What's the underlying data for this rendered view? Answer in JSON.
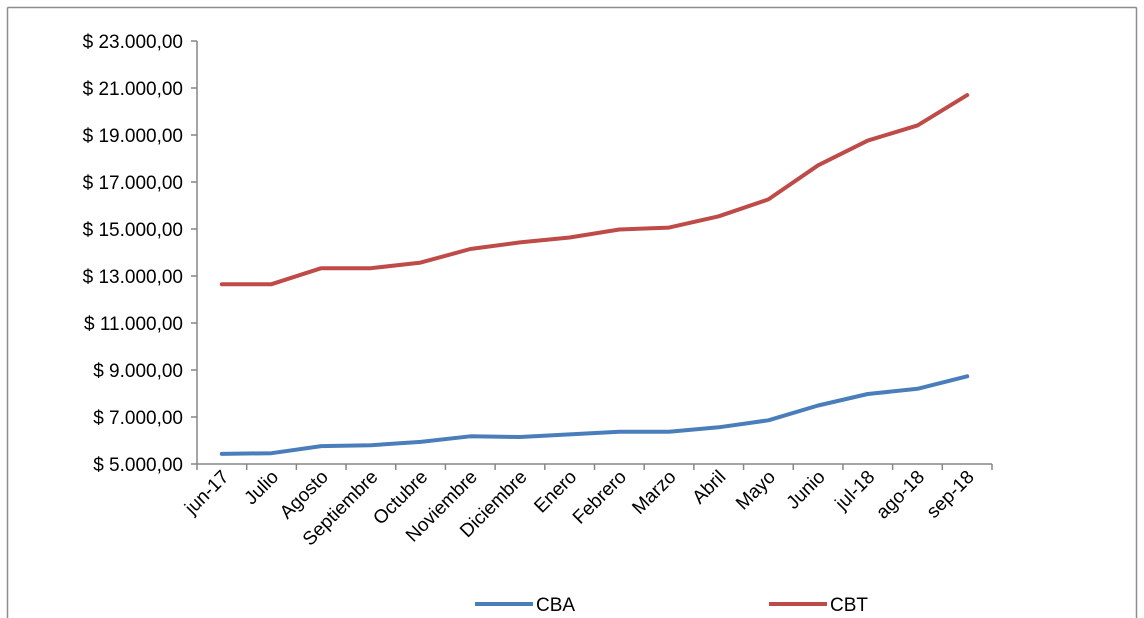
{
  "chart_data": {
    "type": "line",
    "categories": [
      "jun-17",
      "Julio",
      "Agosto",
      "Septiembre",
      "Octubre",
      "Noviembre",
      "Diciembre",
      "Enero",
      "Febrero",
      "Marzo",
      "Abril",
      "Mayo",
      "Junio",
      "jul-18",
      "ago-18",
      "sep-18"
    ],
    "series": [
      {
        "name": "CBA",
        "color": "#4a7ebb",
        "values": [
          5430,
          5460,
          5760,
          5800,
          5940,
          6180,
          6150,
          6260,
          6370,
          6370,
          6560,
          6860,
          7490,
          7980,
          8200,
          8730
        ]
      },
      {
        "name": "CBT",
        "color": "#be4b48",
        "values": [
          12650,
          12650,
          13330,
          13330,
          13570,
          14150,
          14430,
          14640,
          14980,
          15060,
          15540,
          16260,
          17710,
          18760,
          19410,
          20700
        ]
      }
    ],
    "ylim": [
      5000,
      23000
    ],
    "yticks": [
      5000,
      7000,
      9000,
      11000,
      13000,
      15000,
      17000,
      19000,
      21000,
      23000
    ],
    "ytick_labels": [
      "$ 5.000,00",
      "$ 7.000,00",
      "$ 9.000,00",
      "$ 11.000,00",
      "$ 13.000,00",
      "$ 15.000,00",
      "$ 17.000,00",
      "$ 19.000,00",
      "$ 21.000,00",
      "$ 23.000,00"
    ],
    "grid": false,
    "legend_position": "bottom",
    "title": "",
    "xlabel": "",
    "ylabel": ""
  }
}
